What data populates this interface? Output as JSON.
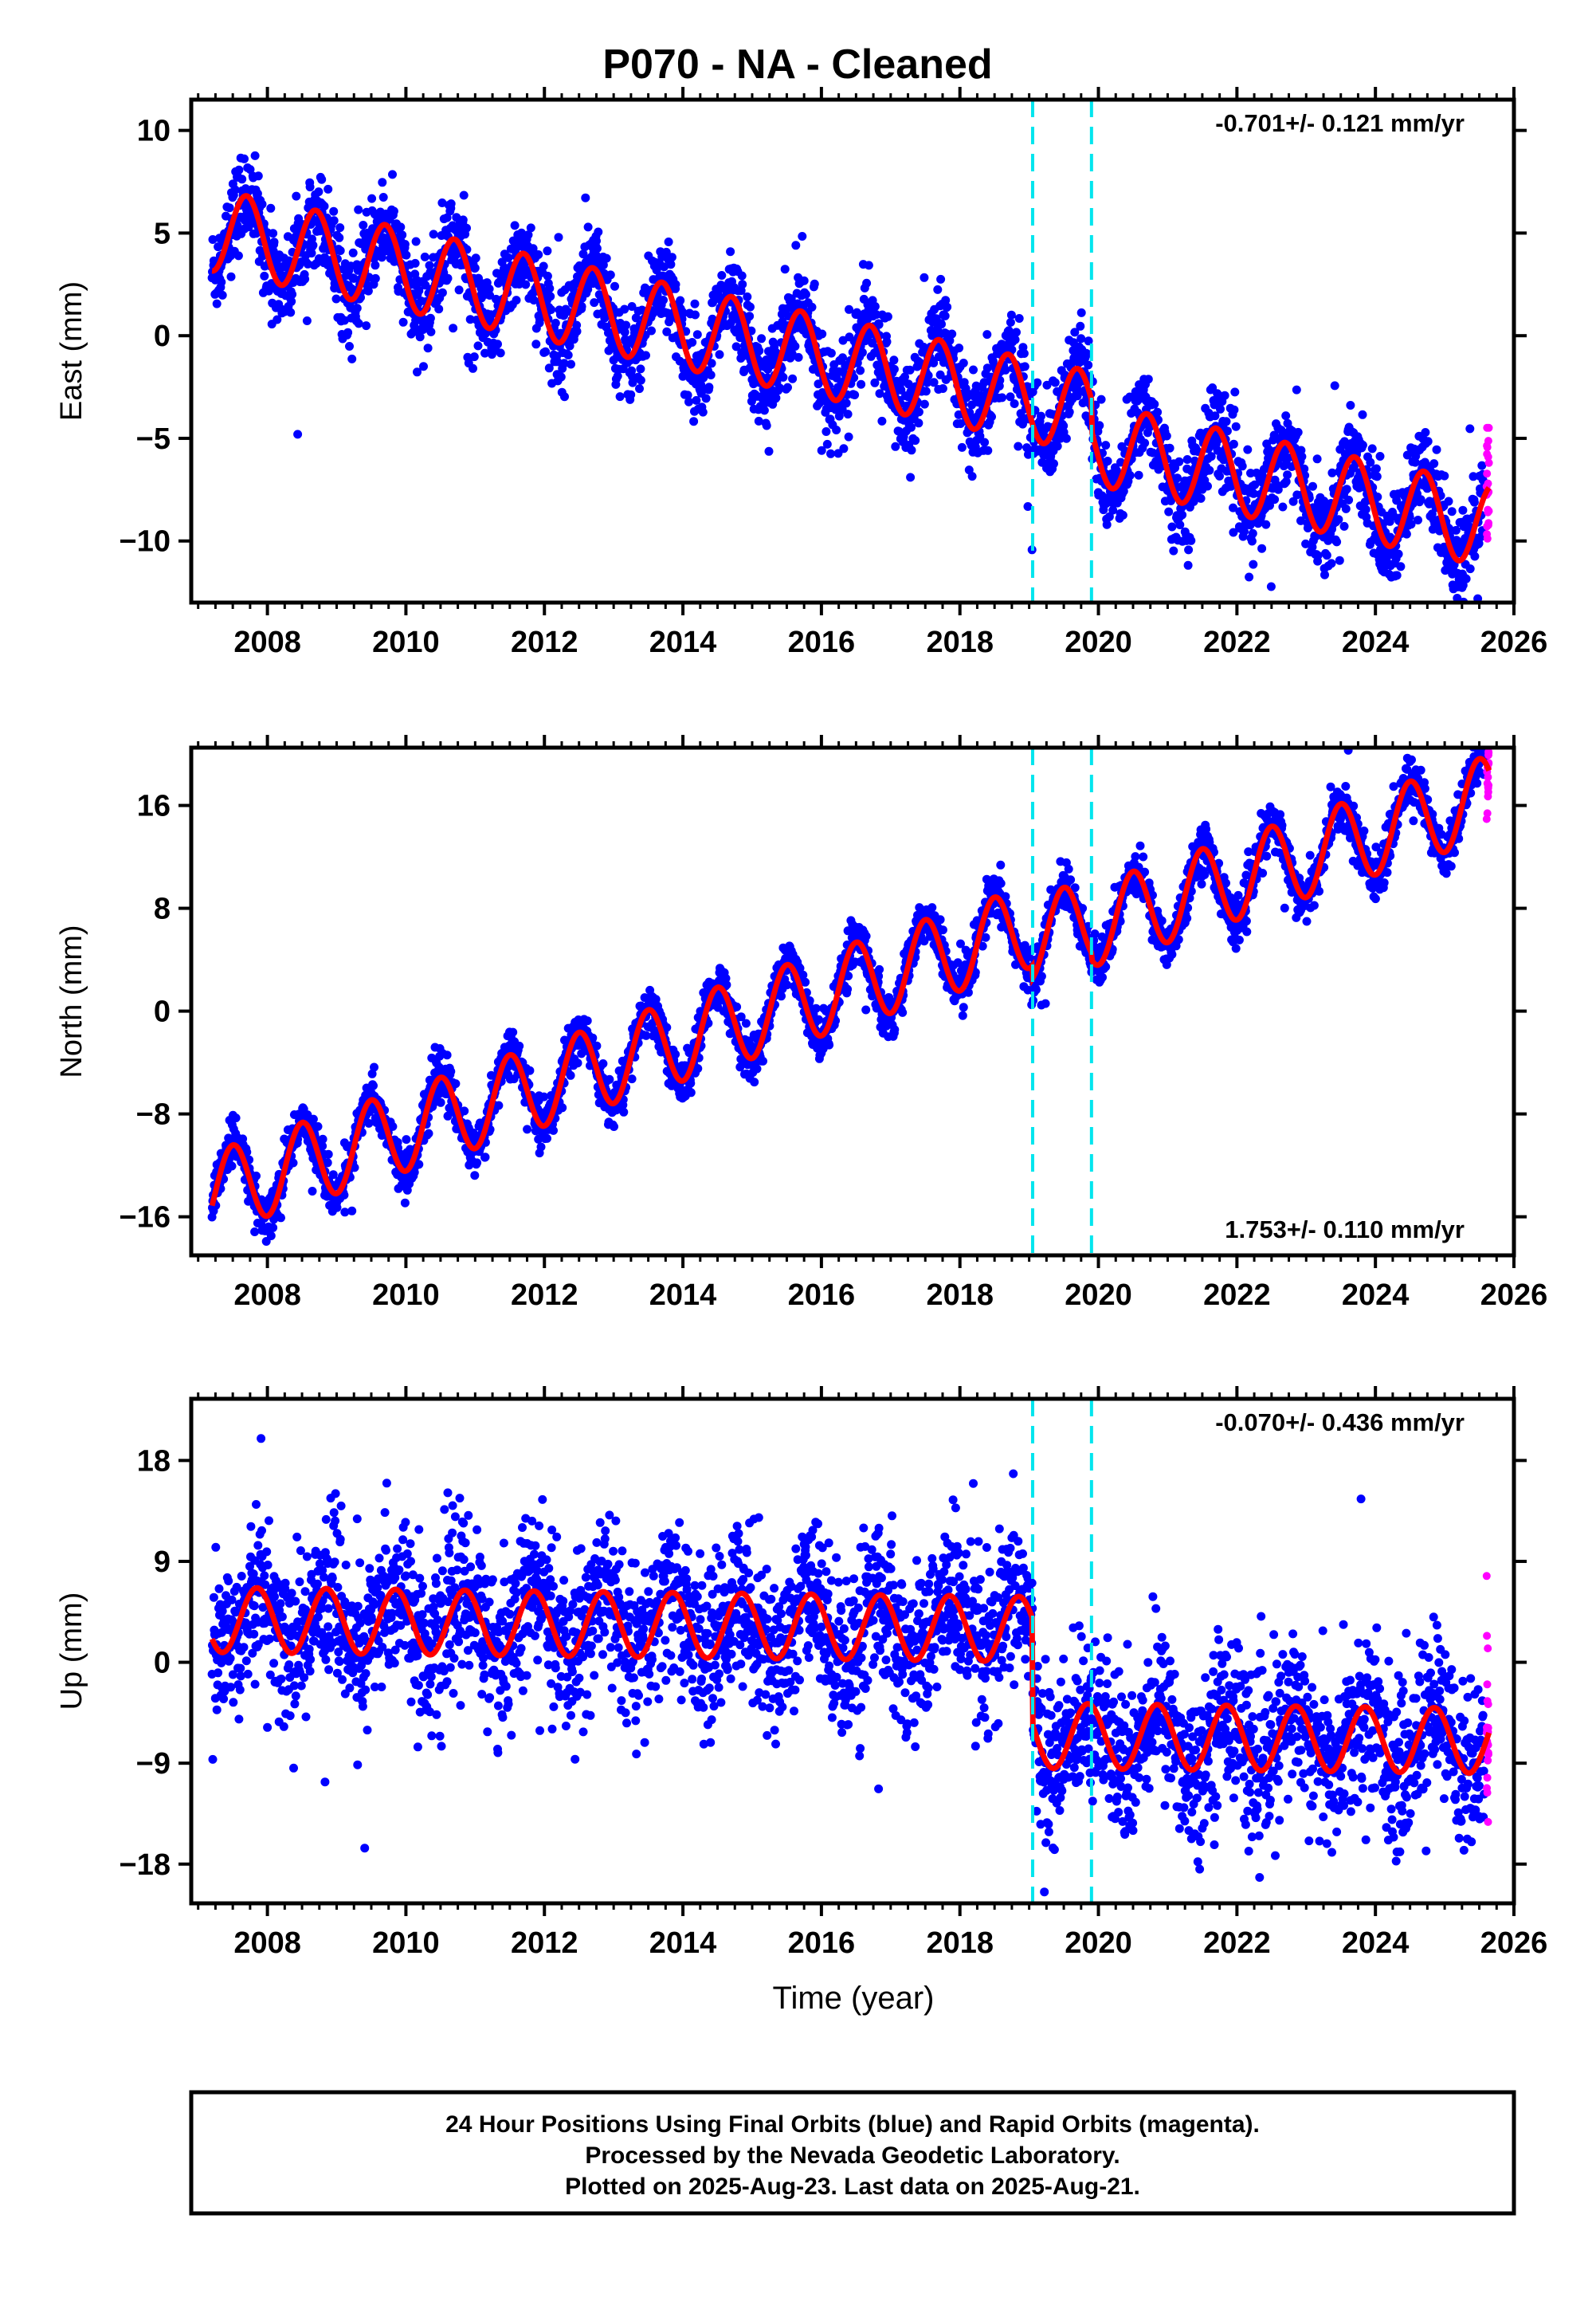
{
  "title": "P070  - NA - Cleaned",
  "xlabel": "Time (year)",
  "footer": {
    "line1": "24 Hour Positions Using Final Orbits (blue) and Rapid Orbits (magenta).",
    "line2": "Processed by the Nevada Geodetic Laboratory.",
    "line3": "Plotted on 2025-Aug-23. Last data on 2025-Aug-21."
  },
  "colors": {
    "final_orbits": "#0000ff",
    "rapid_orbits": "#ff00ff",
    "model": "#ff0000",
    "breaks": "#00e5ee"
  },
  "chart_data": [
    {
      "type": "scatter",
      "ylabel": "East (mm)",
      "rate_label": "-0.701+/- 0.121 mm/yr",
      "rate_position": "top-right",
      "xlim": [
        2006.9,
        2026.0
      ],
      "ylim": [
        -13,
        11.5
      ],
      "yticks": [
        10,
        5,
        0,
        -5,
        -10
      ],
      "xticks": [
        2008,
        2010,
        2012,
        2014,
        2016,
        2018,
        2020,
        2022,
        2024,
        2026
      ],
      "break_lines": [
        2019.05,
        2019.9
      ],
      "data_start": 2007.2,
      "data_end": 2025.64,
      "rapid_start": 2025.57,
      "model": {
        "intercept_2007": 5.3,
        "rate_mm_yr": -0.701,
        "annual_amplitude": 2.0,
        "annual_peak": 0.7,
        "offsets": [
          {
            "year": 2019.05,
            "step": 0.0
          },
          {
            "year": 2019.9,
            "step": -1.5
          }
        ]
      },
      "scatter_sigma": 1.1,
      "series": [
        {
          "name": "Final Orbits",
          "color": "#0000ff"
        },
        {
          "name": "Rapid Orbits",
          "color": "#ff00ff"
        }
      ]
    },
    {
      "type": "scatter",
      "ylabel": "North (mm)",
      "rate_label": "1.753+/- 0.110 mm/yr",
      "rate_position": "bottom-right",
      "xlim": [
        2006.9,
        2026.0
      ],
      "ylim": [
        -19,
        20.5
      ],
      "yticks": [
        16,
        8,
        0,
        -8,
        -16
      ],
      "xticks": [
        2008,
        2010,
        2012,
        2014,
        2016,
        2018,
        2020,
        2022,
        2024,
        2026
      ],
      "break_lines": [
        2019.05,
        2019.9
      ],
      "data_start": 2007.2,
      "data_end": 2025.64,
      "rapid_start": 2025.57,
      "model": {
        "intercept_2007": -14.5,
        "rate_mm_yr": 1.753,
        "annual_amplitude": 3.2,
        "annual_peak": 0.5,
        "offsets": [
          {
            "year": 2019.05,
            "step": -1.0
          },
          {
            "year": 2019.9,
            "step": -0.5
          }
        ]
      },
      "scatter_sigma": 0.9,
      "series": [
        {
          "name": "Final Orbits",
          "color": "#0000ff"
        },
        {
          "name": "Rapid Orbits",
          "color": "#ff00ff"
        }
      ]
    },
    {
      "type": "scatter",
      "ylabel": "Up (mm)",
      "rate_label": "-0.070+/- 0.436 mm/yr",
      "rate_position": "top-right",
      "xlim": [
        2006.9,
        2026.0
      ],
      "ylim": [
        -21.5,
        23.5
      ],
      "yticks": [
        18,
        9,
        0,
        -9,
        -18
      ],
      "xticks": [
        2008,
        2010,
        2012,
        2014,
        2016,
        2018,
        2020,
        2022,
        2024,
        2026
      ],
      "break_lines": [
        2019.05,
        2019.9
      ],
      "data_start": 2007.2,
      "data_end": 2025.64,
      "rapid_start": 2025.57,
      "model": {
        "intercept_2007": 3.8,
        "rate_mm_yr": -0.07,
        "annual_amplitude": 2.9,
        "annual_peak": 0.85,
        "offsets": [
          {
            "year": 2019.05,
            "step": -9.5
          },
          {
            "year": 2019.9,
            "step": 0.0
          }
        ]
      },
      "scatter_sigma": 3.6,
      "series": [
        {
          "name": "Final Orbits",
          "color": "#0000ff"
        },
        {
          "name": "Rapid Orbits",
          "color": "#ff00ff"
        }
      ]
    }
  ]
}
